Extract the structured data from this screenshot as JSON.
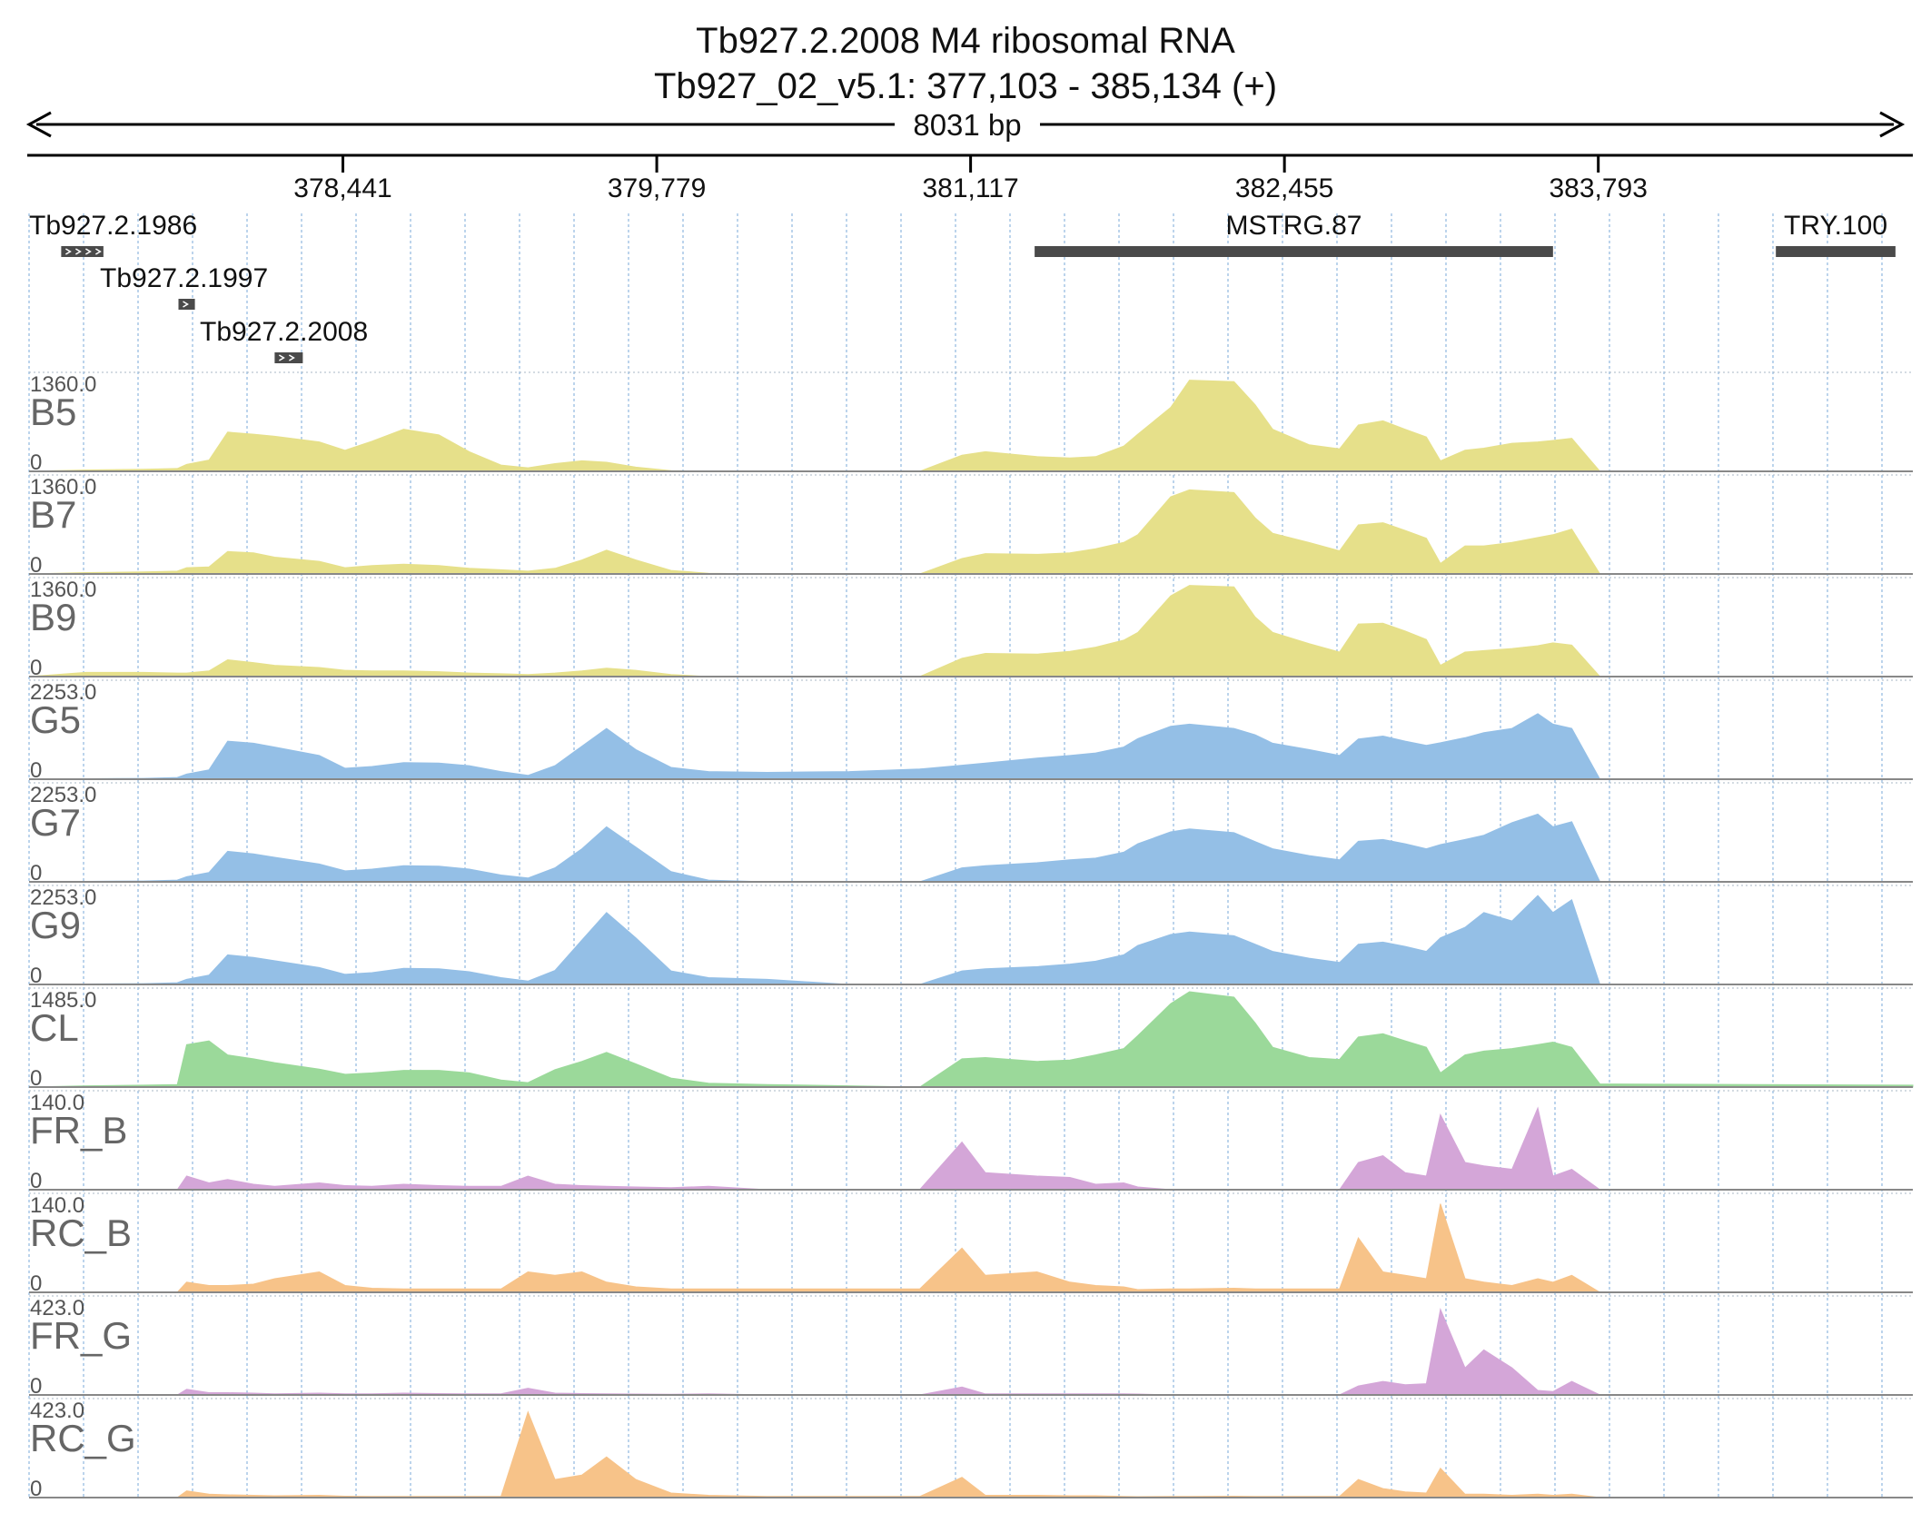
{
  "title": {
    "line1": "Tb927.2.2008  M4 ribosomal RNA",
    "line2": "Tb927_02_v5.1: 377,103 - 385,134 (+)"
  },
  "length_label": "8031 bp",
  "chart_data": {
    "type": "area",
    "xlim": [
      377103,
      385134
    ],
    "ticks": [
      {
        "value": 378441,
        "label": "378,441"
      },
      {
        "value": 379779,
        "label": "379,779"
      },
      {
        "value": 381117,
        "label": "381,117"
      },
      {
        "value": 382455,
        "label": "382,455"
      },
      {
        "value": 383793,
        "label": "383,793"
      }
    ],
    "genes": [
      {
        "name": "Tb927.2.1986",
        "start": 377240,
        "end": 377420,
        "row": 0,
        "arrows": true
      },
      {
        "name": "Tb927.2.1997",
        "start": 377740,
        "end": 377810,
        "row": 1,
        "arrows": true
      },
      {
        "name": "Tb927.2.2008",
        "start": 378150,
        "end": 378270,
        "row": 2,
        "arrows": true
      },
      {
        "name": "MSTRG.87",
        "start": 381390,
        "end": 383600,
        "row": 0,
        "arrows": false
      },
      {
        "name": "TRY.100",
        "start": 384550,
        "end": 385060,
        "row": 0,
        "arrows": false
      }
    ],
    "x": [
      377103,
      377345,
      377590,
      377735,
      377775,
      377870,
      377950,
      378060,
      378150,
      378340,
      378450,
      378565,
      378700,
      378850,
      378980,
      379115,
      379230,
      379345,
      379460,
      379565,
      379690,
      379840,
      380000,
      380250,
      380600,
      380900,
      381080,
      381180,
      381400,
      381540,
      381650,
      381770,
      381830,
      381970,
      382050,
      382240,
      382330,
      382405,
      382560,
      382690,
      382770,
      382875,
      382970,
      383060,
      383120,
      383225,
      383305,
      383425,
      383535,
      383600,
      383680,
      383800,
      385134
    ],
    "series": [
      {
        "name": "B5",
        "color": "#e6e08a",
        "max_label": "1360.0",
        "zero_label": "0",
        "max": 1360,
        "values": [
          0,
          20,
          30,
          40,
          100,
          160,
          560,
          530,
          500,
          420,
          300,
          430,
          600,
          520,
          280,
          90,
          50,
          110,
          150,
          130,
          60,
          10,
          0,
          0,
          0,
          0,
          230,
          280,
          210,
          190,
          210,
          360,
          530,
          910,
          1300,
          1280,
          950,
          600,
          380,
          320,
          660,
          720,
          600,
          490,
          150,
          300,
          330,
          400,
          420,
          440,
          470,
          0,
          0
        ]
      },
      {
        "name": "B7",
        "color": "#e6e08a",
        "max_label": "1360.0",
        "zero_label": "0",
        "max": 1360,
        "values": [
          0,
          20,
          30,
          40,
          90,
          100,
          320,
          300,
          240,
          180,
          90,
          120,
          140,
          120,
          80,
          60,
          40,
          80,
          200,
          340,
          200,
          50,
          10,
          0,
          0,
          0,
          220,
          290,
          280,
          300,
          360,
          450,
          560,
          1100,
          1200,
          1160,
          800,
          580,
          450,
          330,
          700,
          730,
          620,
          510,
          150,
          400,
          400,
          450,
          520,
          560,
          640,
          0,
          0
        ]
      },
      {
        "name": "B9",
        "color": "#e6e08a",
        "max_label": "1360.0",
        "zero_label": "0",
        "max": 1360,
        "values": [
          0,
          60,
          60,
          50,
          50,
          80,
          240,
          200,
          160,
          130,
          90,
          80,
          80,
          70,
          50,
          40,
          30,
          50,
          80,
          120,
          90,
          30,
          0,
          0,
          0,
          0,
          260,
          330,
          320,
          360,
          420,
          520,
          630,
          1150,
          1300,
          1280,
          850,
          630,
          470,
          350,
          750,
          760,
          650,
          530,
          160,
          350,
          370,
          400,
          440,
          480,
          450,
          0,
          0
        ]
      },
      {
        "name": "G5",
        "color": "#94bfe6",
        "max_label": "2253.0",
        "zero_label": "0",
        "max": 2253,
        "values": [
          0,
          10,
          20,
          40,
          120,
          220,
          900,
          850,
          760,
          560,
          260,
          300,
          390,
          380,
          320,
          180,
          90,
          320,
          780,
          1200,
          700,
          280,
          180,
          160,
          180,
          240,
          330,
          380,
          500,
          560,
          620,
          760,
          960,
          1250,
          1300,
          1200,
          1050,
          850,
          700,
          560,
          950,
          1020,
          900,
          800,
          860,
          980,
          1100,
          1200,
          1550,
          1300,
          1200,
          0,
          0
        ]
      },
      {
        "name": "G7",
        "color": "#94bfe6",
        "max_label": "2253.0",
        "zero_label": "0",
        "max": 2253,
        "values": [
          0,
          10,
          20,
          40,
          120,
          220,
          720,
          660,
          580,
          420,
          260,
          300,
          380,
          370,
          300,
          160,
          90,
          330,
          780,
          1300,
          820,
          240,
          40,
          0,
          0,
          0,
          330,
          380,
          450,
          520,
          560,
          700,
          900,
          1180,
          1250,
          1160,
          950,
          780,
          620,
          520,
          960,
          1000,
          900,
          780,
          880,
          1000,
          1100,
          1400,
          1600,
          1300,
          1420,
          0,
          0
        ]
      },
      {
        "name": "G9",
        "color": "#94bfe6",
        "max_label": "2253.0",
        "zero_label": "0",
        "max": 2253,
        "values": [
          0,
          10,
          20,
          40,
          120,
          220,
          700,
          640,
          560,
          400,
          240,
          280,
          380,
          370,
          300,
          160,
          80,
          330,
          1050,
          1700,
          1100,
          320,
          160,
          120,
          0,
          0,
          320,
          370,
          420,
          480,
          550,
          700,
          920,
          1180,
          1240,
          1150,
          950,
          780,
          620,
          520,
          950,
          1000,
          900,
          780,
          1100,
          1350,
          1700,
          1500,
          2100,
          1700,
          2000,
          0,
          0
        ]
      },
      {
        "name": "CL",
        "color": "#9bd99a",
        "max_label": "1485.0",
        "zero_label": "0",
        "max": 1485,
        "values": [
          0,
          20,
          30,
          40,
          660,
          720,
          500,
          440,
          380,
          280,
          200,
          220,
          260,
          260,
          220,
          110,
          70,
          270,
          400,
          540,
          360,
          140,
          60,
          40,
          20,
          0,
          440,
          460,
          400,
          420,
          500,
          600,
          800,
          1300,
          1485,
          1400,
          1000,
          620,
          460,
          430,
          780,
          830,
          720,
          620,
          220,
          500,
          560,
          600,
          660,
          700,
          620,
          50,
          30
        ]
      },
      {
        "name": "FR_B",
        "color": "#d4a6d8",
        "max_label": "140.0",
        "zero_label": "0",
        "max": 140,
        "values": [
          0,
          0,
          0,
          0,
          20,
          10,
          15,
          8,
          5,
          10,
          6,
          5,
          8,
          6,
          5,
          5,
          20,
          8,
          6,
          5,
          4,
          3,
          5,
          0,
          0,
          0,
          70,
          25,
          20,
          18,
          8,
          10,
          4,
          0,
          0,
          0,
          0,
          0,
          0,
          0,
          40,
          50,
          25,
          20,
          110,
          40,
          35,
          30,
          120,
          20,
          30,
          0,
          0
        ]
      },
      {
        "name": "RC_B",
        "color": "#f7c389",
        "max_label": "140.0",
        "zero_label": "0",
        "max": 140,
        "values": [
          0,
          0,
          0,
          0,
          15,
          10,
          10,
          12,
          20,
          30,
          10,
          6,
          5,
          5,
          5,
          5,
          30,
          25,
          30,
          15,
          8,
          5,
          5,
          5,
          5,
          5,
          65,
          25,
          30,
          15,
          10,
          8,
          4,
          5,
          5,
          6,
          5,
          5,
          5,
          5,
          80,
          30,
          25,
          20,
          130,
          20,
          15,
          10,
          20,
          15,
          25,
          0,
          0
        ]
      },
      {
        "name": "FR_G",
        "color": "#d4a6d8",
        "max_label": "423.0",
        "zero_label": "0",
        "max": 423,
        "values": [
          0,
          0,
          0,
          0,
          25,
          10,
          10,
          8,
          5,
          8,
          5,
          5,
          8,
          6,
          5,
          5,
          30,
          8,
          6,
          5,
          4,
          3,
          5,
          0,
          0,
          0,
          35,
          5,
          5,
          5,
          5,
          5,
          4,
          0,
          0,
          0,
          0,
          0,
          0,
          0,
          40,
          60,
          45,
          50,
          380,
          120,
          200,
          120,
          20,
          15,
          60,
          0,
          0
        ]
      },
      {
        "name": "RC_G",
        "color": "#f7c389",
        "max_label": "423.0",
        "zero_label": "0",
        "max": 423,
        "values": [
          0,
          0,
          0,
          0,
          30,
          15,
          12,
          10,
          8,
          10,
          6,
          5,
          5,
          5,
          5,
          5,
          380,
          80,
          100,
          180,
          80,
          20,
          10,
          5,
          5,
          5,
          90,
          10,
          10,
          8,
          8,
          5,
          4,
          5,
          5,
          6,
          5,
          5,
          5,
          5,
          80,
          40,
          25,
          20,
          130,
          15,
          15,
          10,
          15,
          10,
          15,
          0,
          0
        ]
      }
    ]
  }
}
